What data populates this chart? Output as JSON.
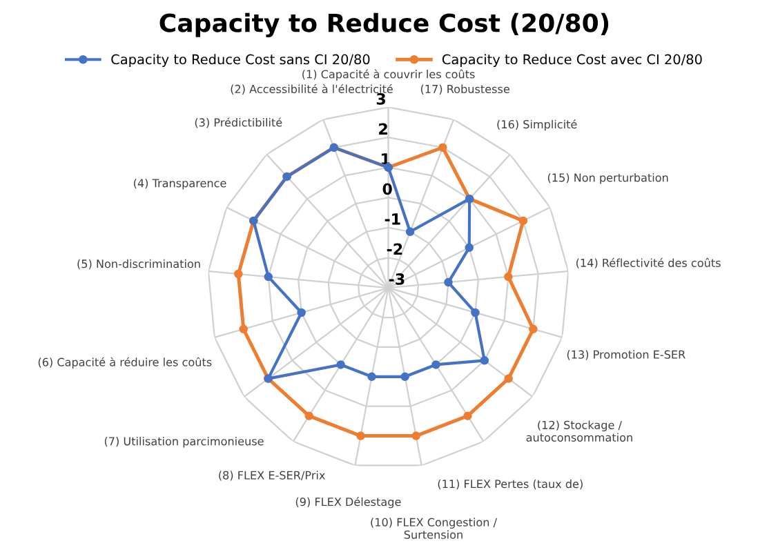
{
  "chart_data": {
    "type": "radar",
    "title": "Capacity to Reduce Cost (20/80)",
    "categories": [
      "(1) Capacité à couvrir les coûts",
      "(17) Robustesse",
      "(16) Simplicité",
      "(15) Non perturbation",
      "(14) Réflectivité des coûts",
      "(13) Promotion E-SER",
      "(12) Stockage /\nautoconsommation",
      "(11) FLEX Pertes (taux de)",
      "(10) FLEX Congestion /\nSurtension",
      "(9) FLEX Délestage",
      "(8) FLEX E-SER/Prix",
      "(7) Utilisation parcimonieuse",
      "(6) Capacité à réduire les coûts",
      "(5) Non-discrimination",
      "(4) Transparence",
      "(3) Prédictibilité",
      "(2) Accessibilité à l'électricité"
    ],
    "series": [
      {
        "name": "Capacity to Reduce Cost sans CI 20/80",
        "color": "#4472c4",
        "values": [
          1,
          -1,
          1,
          0,
          -1,
          0,
          1,
          0,
          0,
          0,
          0,
          2,
          0,
          1,
          2,
          2,
          2
        ]
      },
      {
        "name": "Capacity to Reduce Cost avec CI 20/80",
        "color": "#ed7d31",
        "values": [
          1,
          2,
          1,
          2,
          1,
          2,
          2,
          2,
          2,
          2,
          2,
          2,
          2,
          2,
          2,
          2,
          2
        ]
      }
    ],
    "ylim": [
      -3,
      3
    ],
    "yticks": [
      -3,
      -2,
      -1,
      0,
      1,
      2,
      3
    ],
    "grid": true,
    "legend": "top",
    "marker": "circle",
    "line_style": "solid"
  }
}
